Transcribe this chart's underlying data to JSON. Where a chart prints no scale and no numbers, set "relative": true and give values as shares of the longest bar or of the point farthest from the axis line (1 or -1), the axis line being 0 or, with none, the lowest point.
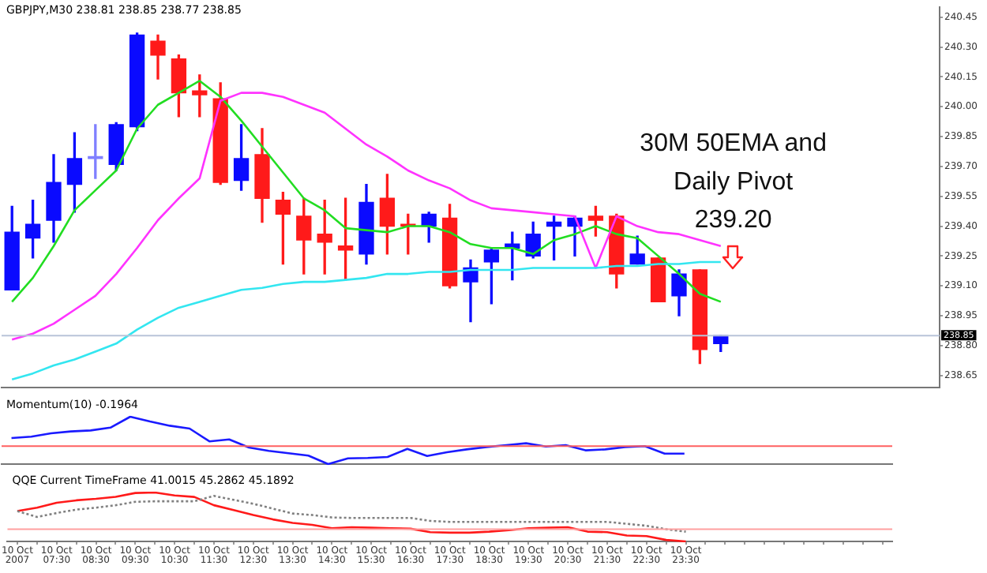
{
  "chart_data": [
    {
      "type": "candlestick",
      "title": "GBPJPY,M30 238.81 238.85 238.77 238.85",
      "categories": [
        null,
        null,
        null,
        null,
        null,
        null,
        null,
        null,
        null,
        null,
        null,
        null,
        null,
        null,
        null,
        null,
        null,
        null,
        null,
        null,
        null,
        null,
        null,
        null,
        null,
        null,
        null,
        null,
        null,
        null,
        null,
        null,
        null,
        null,
        null,
        null,
        null,
        null,
        null,
        null,
        null,
        null,
        null,
        null,
        null
      ],
      "ylim": [
        238.59,
        240.5
      ],
      "yticks": [
        {
          "value": 238.65,
          "label": "238.65"
        },
        {
          "value": 238.8,
          "label": "238.80"
        },
        238.95,
        {
          "value": 239.1,
          "label": "239.10"
        },
        239.25,
        {
          "value": 239.4,
          "label": "239.40"
        },
        239.55,
        {
          "value": 239.7,
          "label": "239.70"
        },
        239.85,
        {
          "value": 240.0,
          "label": "240.00"
        },
        240.15,
        {
          "value": 240.3,
          "label": "240.30"
        },
        240.45
      ],
      "tick_labels": "y",
      "series": [
        {
          "ohlc": [
            [
              239.08,
              239.5,
              239.08,
              239.37
            ],
            [
              239.34,
              239.53,
              239.24,
              239.41
            ],
            [
              239.43,
              239.76,
              239.32,
              239.62
            ],
            [
              239.61,
              239.87,
              239.47,
              239.74
            ],
            [
              239.74,
              239.91,
              239.64,
              239.75
            ],
            [
              239.71,
              239.92,
              239.68,
              239.91
            ],
            [
              239.9,
              240.37,
              239.88,
              240.36
            ],
            [
              240.33,
              240.36,
              240.14,
              240.26
            ],
            [
              240.24,
              240.26,
              239.95,
              240.07
            ],
            [
              240.08,
              240.16,
              239.95,
              240.06
            ],
            [
              240.04,
              240.12,
              239.61,
              239.62
            ],
            [
              239.63,
              239.91,
              239.58,
              239.74
            ],
            [
              239.76,
              239.89,
              239.42,
              239.54
            ],
            [
              239.53,
              239.57,
              239.21,
              239.46
            ],
            [
              239.45,
              239.54,
              239.16,
              239.33
            ],
            [
              239.36,
              239.53,
              239.16,
              239.32
            ],
            [
              239.3,
              239.54,
              239.13,
              239.28
            ],
            [
              239.26,
              239.61,
              239.21,
              239.52
            ],
            [
              239.54,
              239.66,
              239.26,
              239.4
            ],
            [
              239.41,
              239.46,
              239.26,
              239.4
            ],
            [
              239.4,
              239.47,
              239.32,
              239.46
            ],
            [
              239.44,
              239.51,
              239.09,
              239.1
            ],
            [
              239.12,
              239.23,
              238.92,
              239.19
            ],
            [
              239.22,
              239.29,
              239.01,
              239.28
            ],
            [
              239.29,
              239.37,
              239.13,
              239.31
            ],
            [
              239.25,
              239.42,
              239.24,
              239.36
            ],
            [
              239.4,
              239.45,
              239.23,
              239.42
            ],
            [
              239.4,
              239.45,
              239.25,
              239.44
            ],
            [
              239.45,
              239.5,
              239.35,
              239.43
            ],
            [
              239.45,
              239.46,
              239.09,
              239.16
            ],
            [
              239.21,
              239.35,
              239.21,
              239.26
            ],
            [
              239.24,
              239.24,
              239.02,
              239.02
            ],
            [
              239.05,
              239.18,
              238.95,
              239.16
            ],
            [
              239.18,
              239.18,
              238.71,
              238.78
            ],
            [
              238.81,
              238.85,
              238.77,
              238.85
            ],
            null,
            null,
            null,
            null,
            null,
            null,
            null,
            null,
            null,
            null
          ],
          "colors": [
            "#0a0aff",
            "#0a0aff",
            "#0a0aff",
            "#0a0aff",
            "#8080ff",
            "#0a0aff",
            "#0a0aff",
            "#ff1a1a",
            "#ff1a1a",
            "#ff1a1a",
            "#ff1a1a",
            "#0a0aff",
            "#ff1a1a",
            "#ff1a1a",
            "#ff1a1a",
            "#ff1a1a",
            "#ff1a1a",
            "#0a0aff",
            "#ff1a1a",
            "#ff1a1a",
            "#0a0aff",
            "#ff1a1a",
            "#0a0aff",
            "#0a0aff",
            "#0a0aff",
            "#0a0aff",
            "#0a0aff",
            "#0a0aff",
            "#ff1a1a",
            "#ff1a1a",
            "#0a0aff",
            "#ff1a1a",
            "#0a0aff",
            "#ff1a1a",
            "#0a0aff",
            null,
            null,
            null,
            null,
            null,
            null,
            null,
            null,
            null,
            null
          ]
        },
        {
          "type": "line",
          "color": "#22dd22",
          "values": [
            239.02,
            239.14,
            239.3,
            239.48,
            239.58,
            239.68,
            239.89,
            240.01,
            240.07,
            240.13,
            240.05,
            239.93,
            239.8,
            239.67,
            239.54,
            239.48,
            239.39,
            239.38,
            239.37,
            239.4,
            239.4,
            239.37,
            239.31,
            239.29,
            239.29,
            239.26,
            239.33,
            239.36,
            239.4,
            239.36,
            239.34,
            239.25,
            239.16,
            239.06,
            239.02,
            null,
            null,
            null,
            null,
            null,
            null,
            null,
            null,
            null,
            null
          ]
        },
        {
          "type": "line",
          "color": "#ff33ff",
          "values": [
            238.83,
            238.86,
            238.91,
            238.98,
            239.05,
            239.16,
            239.29,
            239.43,
            239.54,
            239.64,
            240.03,
            240.07,
            240.07,
            240.05,
            240.01,
            239.97,
            239.89,
            239.81,
            239.75,
            239.68,
            239.63,
            239.59,
            239.53,
            239.49,
            239.48,
            239.47,
            239.46,
            239.45,
            239.19,
            239.45,
            239.4,
            239.37,
            239.36,
            239.33,
            239.3,
            null,
            null,
            null,
            null,
            null,
            null,
            null,
            null,
            null,
            null
          ]
        },
        {
          "type": "line",
          "color": "#33e6f0",
          "values": [
            238.63,
            238.66,
            238.7,
            238.73,
            238.77,
            238.81,
            238.88,
            238.94,
            238.99,
            239.02,
            239.05,
            239.08,
            239.09,
            239.11,
            239.12,
            239.12,
            239.13,
            239.14,
            239.16,
            239.16,
            239.17,
            239.17,
            239.18,
            239.18,
            239.18,
            239.19,
            239.19,
            239.19,
            239.19,
            239.2,
            239.2,
            239.21,
            239.21,
            239.22,
            239.22,
            null,
            null,
            null,
            null,
            null,
            null,
            null,
            null,
            null,
            null
          ]
        }
      ],
      "ref_lines": [
        {
          "axis": "y",
          "value": 238.85,
          "label": "238.85",
          "color": "#b8c4d8"
        }
      ],
      "annotations": [
        "30M 50EMA and",
        "Daily Pivot",
        "239.20"
      ]
    },
    {
      "type": "line",
      "title": "Momentum(10) -0.1964",
      "categories": [
        null,
        null,
        null,
        null,
        null,
        null,
        null,
        null,
        null,
        null,
        null,
        null,
        null,
        null,
        null,
        null,
        null,
        null,
        null,
        null,
        null,
        null,
        null,
        null,
        null,
        null,
        null,
        null,
        null,
        null,
        null,
        null,
        null,
        null,
        null,
        null,
        null,
        null,
        null,
        null,
        null,
        null,
        null,
        null,
        null
      ],
      "relative": true,
      "tick_labels": false,
      "series": [
        {
          "color": "#1a1aff",
          "values": [
            0.55,
            0.58,
            0.65,
            0.69,
            0.71,
            0.77,
            1,
            0.9,
            0.81,
            0.75,
            0.48,
            0.52,
            0.35,
            0.28,
            0.23,
            0.18,
            0,
            0.12,
            0.13,
            0.15,
            0.32,
            0.17,
            0.25,
            0.31,
            0.36,
            0.4,
            0.44,
            0.37,
            0.4,
            0.29,
            0.31,
            0.36,
            0.38,
            0.22,
            0.22,
            null,
            null,
            null,
            null,
            null,
            null,
            null,
            null,
            null,
            null
          ]
        }
      ],
      "ref_lines": [
        {
          "axis": "y",
          "value": 0.38,
          "color": "#ff6060"
        }
      ]
    },
    {
      "type": "line",
      "title": "QQE Current TimeFrame 41.0015 45.2862 45.1892",
      "categories": [
        "10 Oct 2007",
        null,
        "10 Oct 07:30",
        null,
        "10 Oct 08:30",
        null,
        "10 Oct 09:30",
        null,
        "10 Oct 10:30",
        null,
        "10 Oct 11:30",
        null,
        "10 Oct 12:30",
        null,
        "10 Oct 13:30",
        null,
        "10 Oct 14:30",
        null,
        "10 Oct 15:30",
        null,
        "10 Oct 16:30",
        null,
        "10 Oct 17:30",
        null,
        "10 Oct 18:30",
        null,
        "10 Oct 19:30",
        null,
        "10 Oct 20:30",
        null,
        "10 Oct 21:30",
        null,
        "10 Oct 22:30",
        null,
        "10 Oct 23:30",
        null,
        null,
        null,
        null,
        null,
        null,
        null,
        null,
        null,
        null
      ],
      "relative": true,
      "tick_labels": "x",
      "series": [
        {
          "color": "#ff1a1a",
          "values": [
            0.62,
            0.69,
            0.79,
            0.84,
            0.87,
            0.91,
            0.99,
            1,
            0.94,
            0.91,
            0.74,
            0.64,
            0.54,
            0.45,
            0.38,
            0.34,
            0.27,
            0.29,
            0.28,
            0.27,
            0.26,
            0.19,
            0.18,
            0.18,
            0.2,
            0.23,
            0.27,
            0.28,
            0.29,
            0.2,
            0.19,
            0.12,
            0.11,
            0.03,
            0,
            null,
            null,
            null,
            null,
            null,
            null,
            null,
            null,
            null,
            null
          ]
        },
        {
          "color": "#808080",
          "line_style": "dotted",
          "values": [
            0.62,
            0.5,
            0.58,
            0.65,
            0.69,
            0.74,
            0.81,
            0.82,
            0.82,
            0.82,
            0.93,
            0.85,
            0.77,
            0.67,
            0.57,
            0.54,
            0.49,
            0.48,
            0.48,
            0.48,
            0.48,
            0.42,
            0.4,
            0.4,
            0.4,
            0.4,
            0.4,
            0.4,
            0.4,
            0.4,
            0.4,
            0.36,
            0.32,
            0.25,
            0.2,
            null,
            null,
            null,
            null,
            null,
            null,
            null,
            null,
            null,
            null
          ]
        }
      ],
      "ref_lines": [
        {
          "axis": "y",
          "value": 0.25,
          "color": "#ffa0a0"
        }
      ]
    }
  ]
}
